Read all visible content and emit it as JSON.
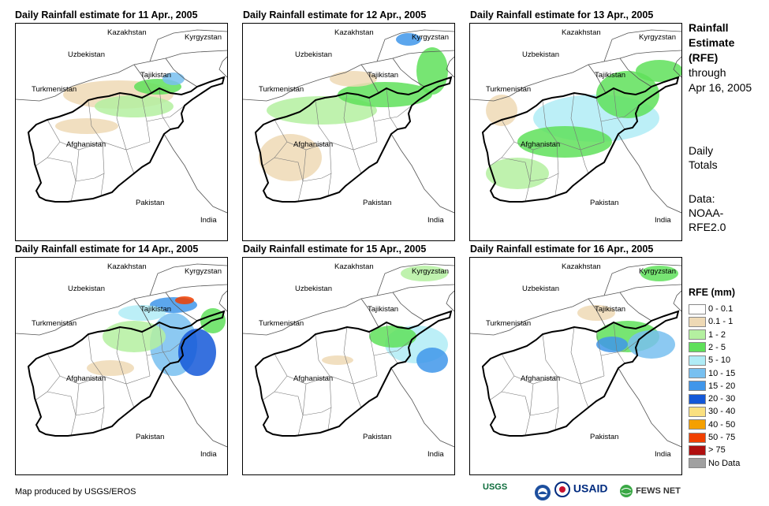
{
  "panels": [
    {
      "title": "Daily Rainfall estimate for 11 Apr., 2005"
    },
    {
      "title": "Daily Rainfall estimate for 12 Apr., 2005"
    },
    {
      "title": "Daily Rainfall estimate for 13 Apr., 2005"
    },
    {
      "title": "Daily Rainfall estimate for 14 Apr., 2005"
    },
    {
      "title": "Daily Rainfall estimate for 15 Apr., 2005"
    },
    {
      "title": "Daily Rainfall estimate for 16 Apr., 2005"
    }
  ],
  "countries": {
    "kazakhstan": "Kazakhstan",
    "kyrgyzstan": "Kyrgyzstan",
    "uzbekistan": "Uzbekistan",
    "tajikistan": "Tajikistan",
    "turkmenistan": "Turkmenistan",
    "afghanistan": "Afghanistan",
    "pakistan": "Pakistan",
    "india": "India"
  },
  "sidebar": {
    "title_line1": "Rainfall",
    "title_line2": "Estimate",
    "title_line3": "(RFE)",
    "through": "through",
    "date": "Apr 16, 2005",
    "daily1": "Daily",
    "daily2": "Totals",
    "data1": "Data:",
    "data2": "NOAA-",
    "data3": "RFE2.0"
  },
  "legend": {
    "title": "RFE (mm)",
    "items": [
      {
        "label": "0 - 0.1",
        "color": "#ffffff"
      },
      {
        "label": "0.1 - 1",
        "color": "#eed9b5"
      },
      {
        "label": "1 - 2",
        "color": "#b4f0a0"
      },
      {
        "label": "2 - 5",
        "color": "#5fe05a"
      },
      {
        "label": "5 - 10",
        "color": "#b0ecf6"
      },
      {
        "label": "10 - 15",
        "color": "#78c0f0"
      },
      {
        "label": "15 - 20",
        "color": "#4096ea"
      },
      {
        "label": "20 - 30",
        "color": "#1458d8"
      },
      {
        "label": "30 - 40",
        "color": "#fae080"
      },
      {
        "label": "40 - 50",
        "color": "#f5a000"
      },
      {
        "label": "50 - 75",
        "color": "#f04000"
      },
      {
        "label": "> 75",
        "color": "#b01010"
      },
      {
        "label": "No Data",
        "color": "#a0a0a0"
      }
    ]
  },
  "footer": {
    "credit": "Map produced by USGS/EROS",
    "logos": [
      "USGS",
      "USAID",
      "FEWS NET"
    ]
  }
}
